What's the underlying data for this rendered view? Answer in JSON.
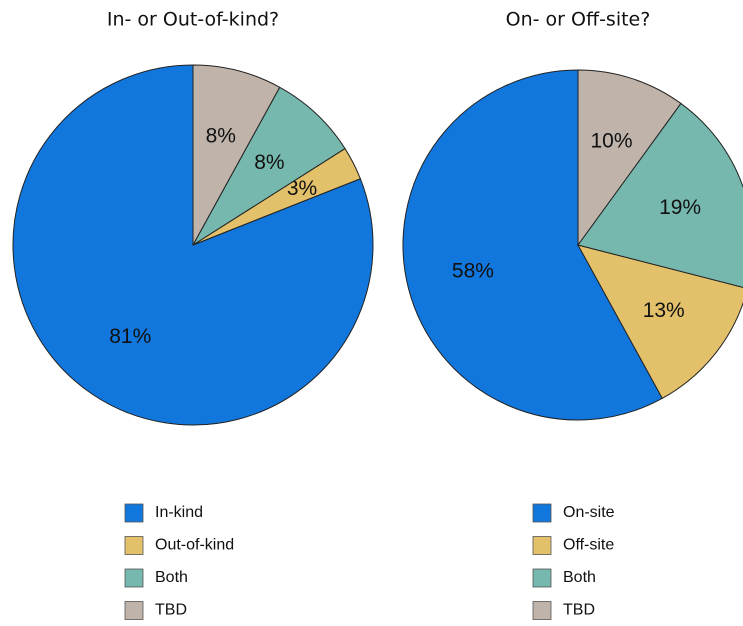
{
  "chart_data": [
    {
      "type": "pie",
      "title": "In- or Out-of-kind?",
      "categories": [
        "In-kind",
        "Out-of-kind",
        "Both",
        "TBD"
      ],
      "values": [
        81,
        3,
        8,
        8
      ],
      "value_labels": [
        "81%",
        "3%",
        "8%",
        "8%"
      ],
      "colors": [
        "#1177dd",
        "#e3c06a",
        "#76b8ae",
        "#bfb3aa"
      ]
    },
    {
      "type": "pie",
      "title": "On- or Off-site?",
      "categories": [
        "On-site",
        "Off-site",
        "Both",
        "TBD"
      ],
      "values": [
        58,
        13,
        19,
        10
      ],
      "value_labels": [
        "58%",
        "13%",
        "19%",
        "10%"
      ],
      "colors": [
        "#1177dd",
        "#e3c06a",
        "#76b8ae",
        "#bfb3aa"
      ]
    }
  ]
}
